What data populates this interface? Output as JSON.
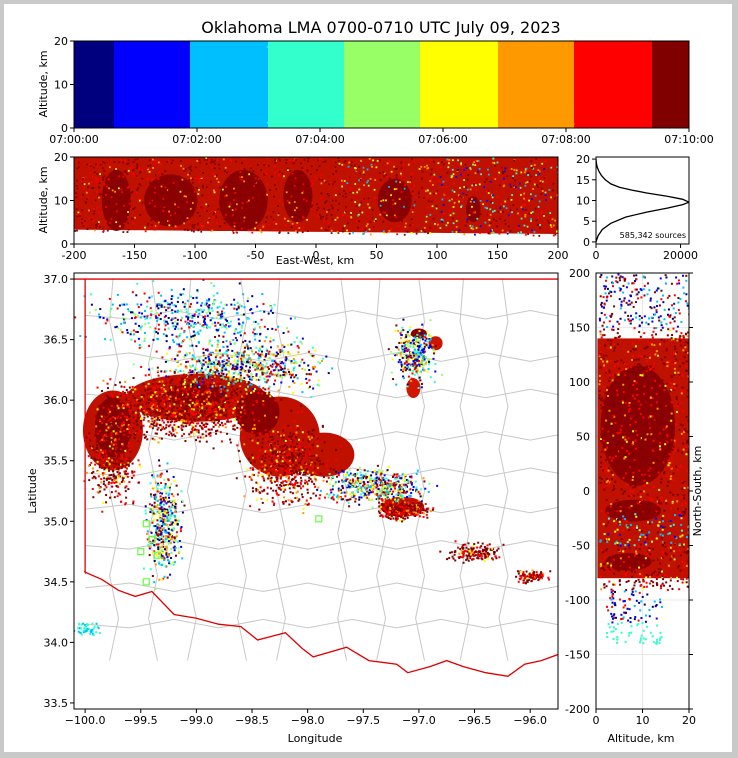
{
  "chart_data": [
    {
      "type": "scatter",
      "panel": "altitude-time",
      "title": "Oklahoma LMA 0700-0710 UTC July 09, 2023",
      "xlabel": "",
      "ylabel": "Altitude, km",
      "xlim": [
        0,
        600
      ],
      "ylim": [
        0,
        20
      ],
      "x_ticks": [
        0,
        120,
        240,
        360,
        480,
        600
      ],
      "x_tick_labels": [
        "07:00:00",
        "07:02:00",
        "07:04:00",
        "07:06:00",
        "07:08:00",
        "07:10:00"
      ],
      "y_ticks": [
        0,
        10,
        20
      ],
      "color_by": "time",
      "colormap": [
        "#00007f",
        "#0000ff",
        "#00bfff",
        "#33ffcc",
        "#99ff66",
        "#ffff00",
        "#ff9900",
        "#ff0000",
        "#800000"
      ]
    },
    {
      "type": "scatter",
      "panel": "east-west-altitude",
      "xlabel": "East-West, km",
      "ylabel": "Altitude, km",
      "xlim": [
        -200,
        200
      ],
      "ylim": [
        0,
        20
      ],
      "x_ticks": [
        -200,
        -150,
        -100,
        -50,
        0,
        50,
        100,
        150,
        200
      ],
      "y_ticks": [
        0,
        10,
        20
      ]
    },
    {
      "type": "line",
      "panel": "altitude-histogram",
      "annotation": "585,342 sources",
      "xlim": [
        0,
        22000
      ],
      "ylim": [
        -0.5,
        20.5
      ],
      "x_ticks": [
        0,
        20000
      ],
      "y_ticks": [
        0,
        5,
        10,
        15,
        20
      ],
      "x": [
        0,
        500,
        1500,
        3500,
        7000,
        12000,
        17000,
        20500,
        22000,
        20500,
        17000,
        12000,
        8500,
        5500,
        3500,
        2200,
        1300,
        700,
        300,
        100,
        0
      ],
      "y": [
        0,
        1.5,
        3.0,
        4.5,
        6.0,
        7.2,
        8.2,
        9.0,
        9.6,
        10.3,
        11.0,
        11.8,
        12.5,
        13.2,
        14.0,
        15.0,
        16.0,
        17.0,
        18.0,
        19.0,
        20.0
      ]
    },
    {
      "type": "scatter",
      "panel": "plan-view-map",
      "xlabel": "Longitude",
      "ylabel": "Latitude",
      "xlim": [
        -100.1,
        -95.75
      ],
      "ylim": [
        33.45,
        37.05
      ],
      "x_ticks": [
        -100.0,
        -99.5,
        -99.0,
        -98.5,
        -98.0,
        -97.5,
        -97.0,
        -96.5,
        -96.0
      ],
      "x_tick_labels": [
        "−100.0",
        "−99.5",
        "−99.0",
        "−98.5",
        "−98.0",
        "−97.5",
        "−97.0",
        "−96.5",
        "−96.0"
      ],
      "y_ticks": [
        33.5,
        34.0,
        34.5,
        35.0,
        35.5,
        36.0,
        36.5,
        37.0
      ],
      "stations": [
        [
          -99.45,
          34.5
        ],
        [
          -99.5,
          34.75
        ],
        [
          -99.4,
          34.85
        ],
        [
          -99.45,
          34.98
        ],
        [
          -99.35,
          34.72
        ],
        [
          -97.9,
          35.02
        ]
      ]
    },
    {
      "type": "scatter",
      "panel": "altitude-north-south",
      "xlabel": "Altitude, km",
      "ylabel": "North-South, km",
      "xlim": [
        0,
        20
      ],
      "ylim": [
        -200,
        200
      ],
      "x_ticks": [
        0,
        10,
        20
      ],
      "y_ticks": [
        -200,
        -150,
        -100,
        -50,
        0,
        50,
        100,
        150,
        200
      ]
    }
  ]
}
